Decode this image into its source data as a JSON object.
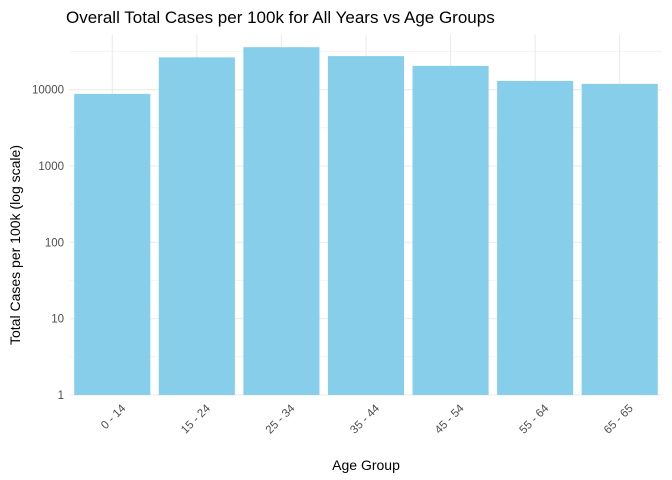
{
  "chart_data": {
    "type": "bar",
    "title": "Overall Total Cases per 100k for All Years vs Age Groups",
    "xlabel": "Age Group",
    "ylabel": "Total Cases per 100k (log scale)",
    "y_scale": "log10",
    "ylim": [
      1,
      52000
    ],
    "yticks": [
      1,
      10,
      100,
      1000,
      10000
    ],
    "ytick_labels": [
      "1",
      "10",
      "100",
      "1000",
      "10000"
    ],
    "grid": true,
    "categories": [
      "0 - 14",
      "15 - 24",
      "25 - 34",
      "35 - 44",
      "45 - 54",
      "55 - 64",
      "65 - 65"
    ],
    "values": [
      8800,
      26500,
      36000,
      27500,
      20500,
      13000,
      11900
    ],
    "bar_color": "#87CEEB",
    "grid_color": "#ebebeb"
  }
}
